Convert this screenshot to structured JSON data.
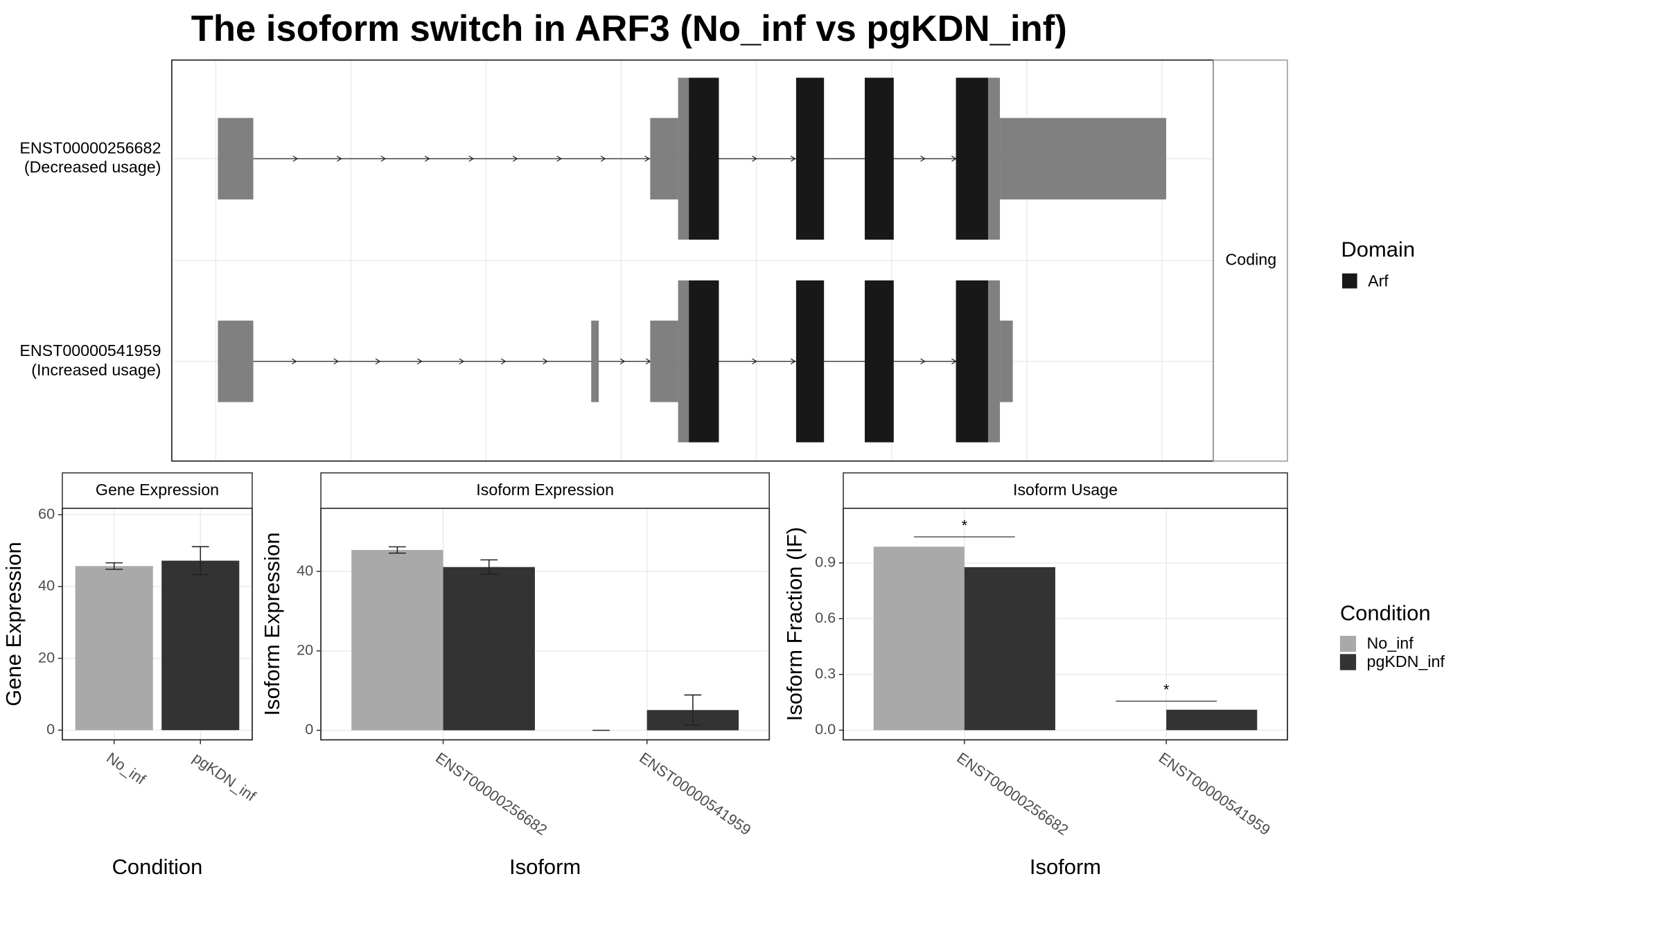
{
  "chart_data": [
    {
      "type": "transcript",
      "title": "The isoform switch in ARF3 (No_inf vs pgKDN_inf)",
      "transcripts": [
        {
          "name": "ENST00000256682",
          "usage": "(Decreased usage)"
        },
        {
          "name": "ENST00000541959",
          "usage": "(Increased usage)"
        }
      ],
      "facet": "Coding",
      "legend_title": "Domain",
      "domains": [
        {
          "name": "Arf",
          "color": "#181818"
        }
      ]
    },
    {
      "type": "bar",
      "title": "Gene Expression",
      "ylabel": "Gene Expression",
      "xlabel": "Condition",
      "categories": [
        "No_inf",
        "pgKDN_inf"
      ],
      "values": [
        45.7,
        47.2
      ],
      "errors": [
        0.9,
        3.9
      ],
      "colors": [
        "#a9a9a9",
        "#333333"
      ],
      "ylim": [
        -2.7,
        61.8
      ],
      "yticks": [
        0,
        20,
        40,
        60
      ],
      "grid": true
    },
    {
      "type": "grouped_bar",
      "title": "Isoform Expression",
      "ylabel": "Isoform Expression",
      "xlabel": "Isoform",
      "categories": [
        "ENST00000256682",
        "ENST00000541959"
      ],
      "series": [
        {
          "name": "No_inf",
          "color": "#a9a9a9",
          "values": [
            45.4,
            0
          ],
          "errors": [
            0.8,
            0
          ]
        },
        {
          "name": "pgKDN_inf",
          "color": "#333333",
          "values": [
            41.1,
            5.1
          ],
          "errors": [
            1.8,
            3.8
          ]
        }
      ],
      "ylim": [
        -2.4,
        55.9
      ],
      "yticks": [
        0,
        20,
        40
      ],
      "grid": true,
      "legend_title": "Condition"
    },
    {
      "type": "grouped_bar",
      "title": "Isoform Usage",
      "ylabel": "Isoform Fraction (IF)",
      "xlabel": "Isoform",
      "categories": [
        "ENST00000256682",
        "ENST00000541959"
      ],
      "series": [
        {
          "name": "No_inf",
          "color": "#a9a9a9",
          "values": [
            0.987,
            0
          ]
        },
        {
          "name": "pgKDN_inf",
          "color": "#333333",
          "values": [
            0.877,
            0.11
          ]
        }
      ],
      "ylim": [
        -0.052,
        1.194
      ],
      "yticks": [
        {
          "value": 0,
          "label": "0.0"
        },
        0.3,
        0.6,
        0.9
      ],
      "grid": true,
      "annotations": [
        {
          "text": "*",
          "category": 0,
          "y": 1.04
        },
        {
          "text": "*",
          "category": 1,
          "y": 0.156
        }
      ]
    }
  ]
}
